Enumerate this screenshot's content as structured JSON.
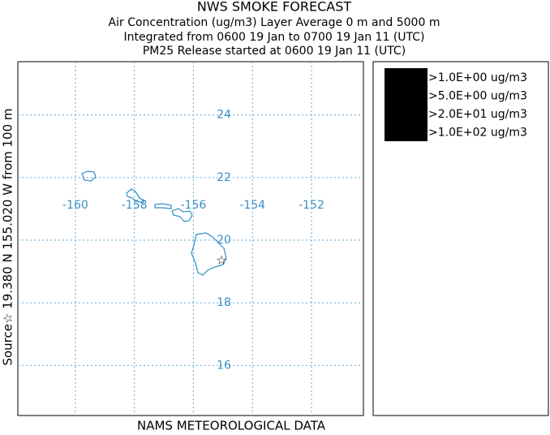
{
  "header": {
    "title": "NWS SMOKE FORECAST",
    "subtitle_lines": [
      "Air Concentration (ug/m3) Layer Average    0 m and  5000 m",
      "Integrated from 0600 19 Jan to 0700 19 Jan 11 (UTC)",
      "PM25 Release started at 0600 19 Jan 11 (UTC)"
    ]
  },
  "map": {
    "lon_range": [
      -161.95,
      -150.24
    ],
    "lat_range": [
      25.7,
      14.4
    ],
    "lon_ticks": [
      -160,
      -158,
      -156,
      -154,
      -152
    ],
    "lat_ticks": [
      24,
      22,
      20,
      18,
      16
    ],
    "source_label": "Source☆ 19.380  N 155.020  W     from  100 m",
    "footer": "NAMS METEOROLOGICAL DATA"
  },
  "legend": {
    "entries": [
      ">1.0E+00 ug/m3",
      ">5.0E+00 ug/m3",
      ">2.0E+01 ug/m3",
      ">1.0E+02 ug/m3"
    ]
  }
}
